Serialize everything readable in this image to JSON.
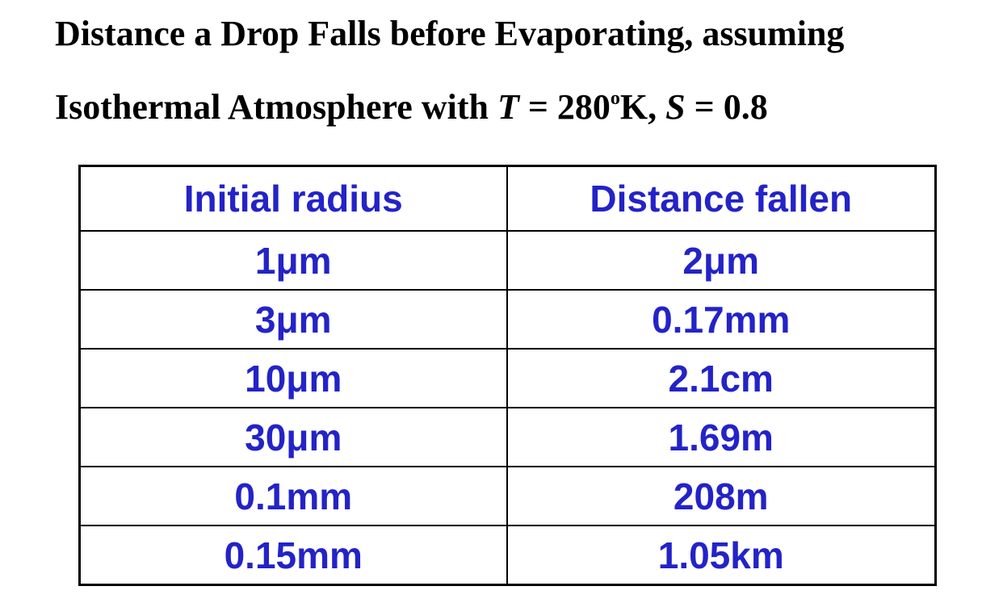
{
  "title": {
    "line1": "Distance a Drop Falls before Evaporating, assuming",
    "line2_prefix": "Isothermal Atmosphere with ",
    "T_symbol": "T",
    "T_eq": " = 280",
    "T_deg": "o",
    "T_unit": "K, ",
    "S_symbol": "S",
    "S_eq": " = 0.8"
  },
  "table": {
    "headers": [
      "Initial radius",
      "Distance fallen"
    ],
    "rows": [
      [
        "1μm",
        "2μm"
      ],
      [
        "3μm",
        "0.17mm"
      ],
      [
        "10μm",
        "2.1cm"
      ],
      [
        "30μm",
        "1.69m"
      ],
      [
        "0.1mm",
        "208m"
      ],
      [
        "0.15mm",
        "1.05km"
      ]
    ]
  },
  "colors": {
    "cell_text": "#2323c8",
    "title_text": "#000000",
    "border": "#000000"
  }
}
